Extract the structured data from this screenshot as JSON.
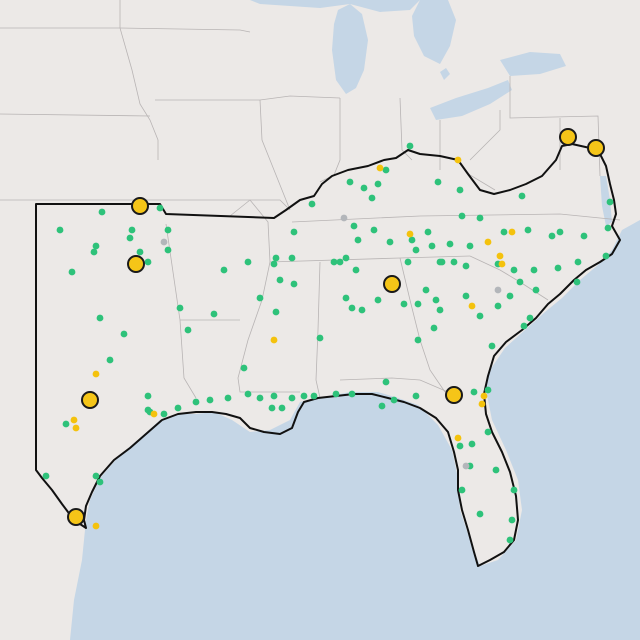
{
  "map": {
    "colors": {
      "land": "#ece9e7",
      "water": "#c5d6e6",
      "state_border": "#b8b4b4",
      "region_outline": "#111111",
      "dot_green": "#2ec27a",
      "dot_yellow": "#f4c20d",
      "dot_gray": "#b3b6ba",
      "large_marker_fill": "#f5c518",
      "large_marker_stroke": "#1a1a1a"
    },
    "large_markers": [
      {
        "name": "marker-oklahoma-north"
      },
      {
        "name": "marker-oklahoma-central"
      },
      {
        "name": "marker-texas-central"
      },
      {
        "name": "marker-texas-south"
      },
      {
        "name": "marker-georgia-west"
      },
      {
        "name": "marker-florida-north"
      },
      {
        "name": "marker-pennsylvania"
      },
      {
        "name": "marker-new-jersey"
      }
    ]
  }
}
